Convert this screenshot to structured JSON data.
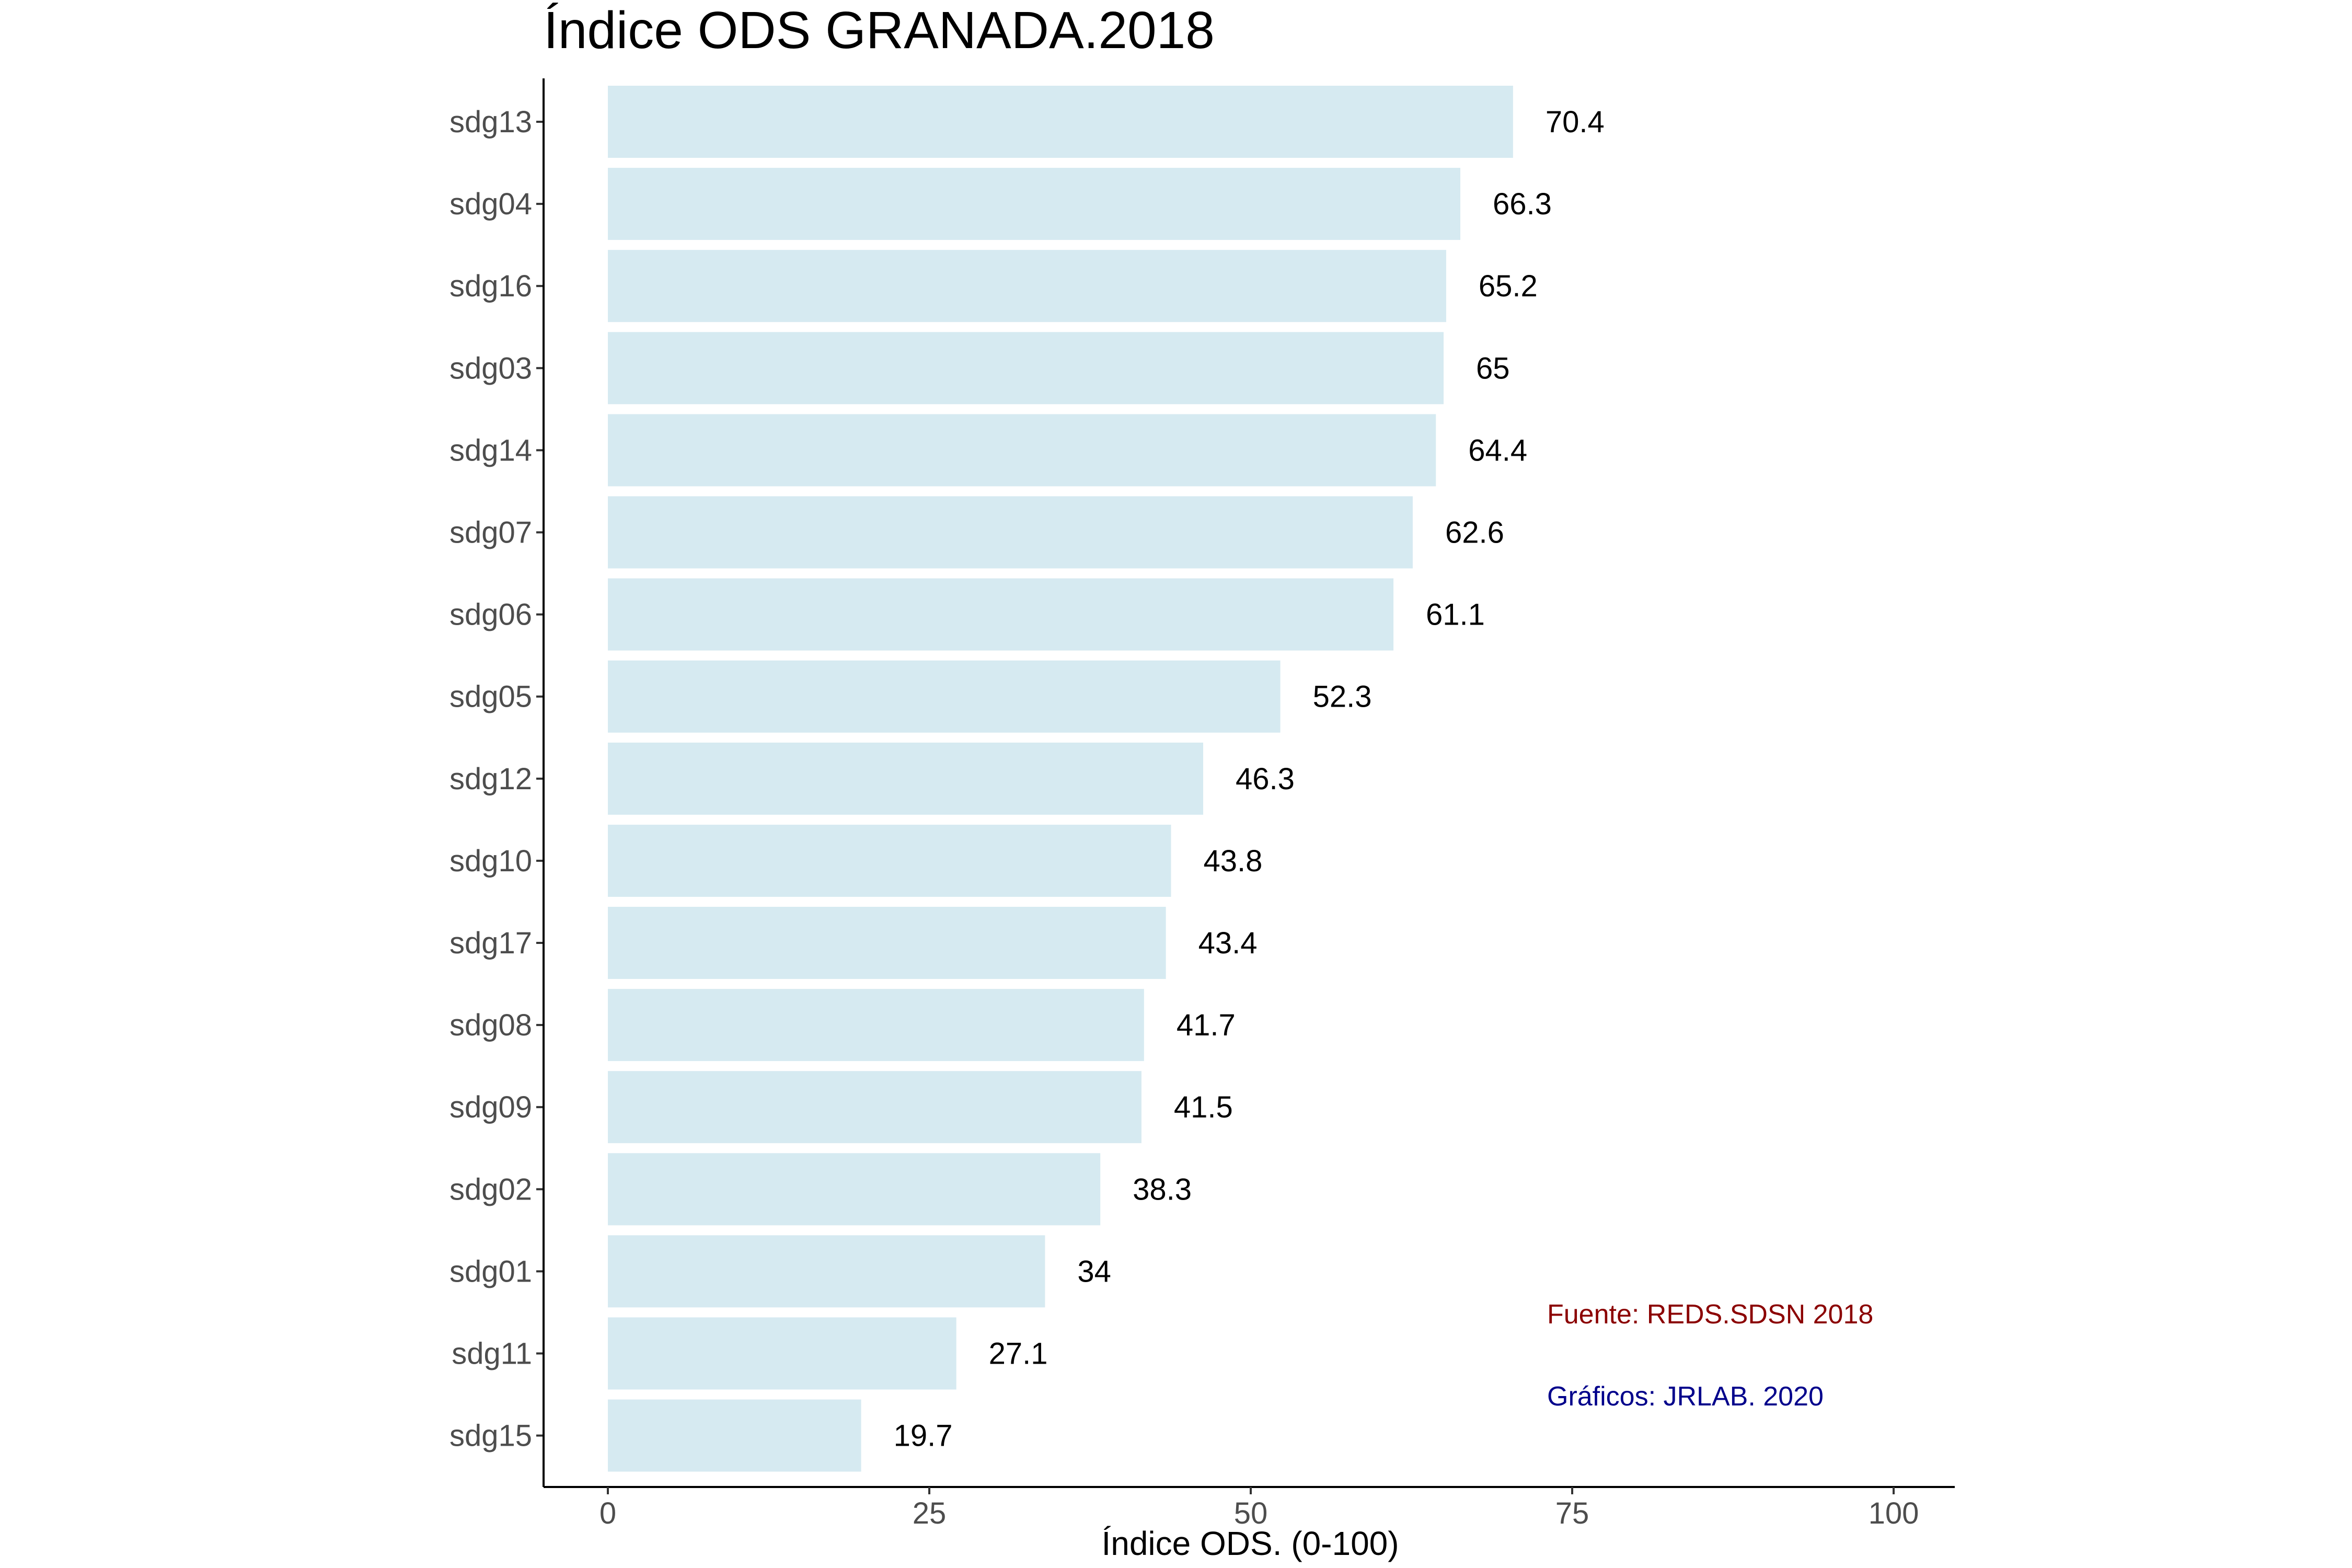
{
  "chart_data": {
    "type": "bar",
    "orientation": "horizontal",
    "title": "Índice ODS GRANADA.2018",
    "xlabel": "Índice ODS. (0-100)",
    "ylabel": "",
    "xlim": [
      0,
      100
    ],
    "xticks": [
      0,
      25,
      50,
      75,
      100
    ],
    "grid": false,
    "bar_color": "#d6eaf1",
    "categories": [
      "sdg13",
      "sdg04",
      "sdg16",
      "sdg03",
      "sdg14",
      "sdg07",
      "sdg06",
      "sdg05",
      "sdg12",
      "sdg10",
      "sdg17",
      "sdg08",
      "sdg09",
      "sdg02",
      "sdg01",
      "sdg11",
      "sdg15"
    ],
    "values": [
      70.4,
      66.3,
      65.2,
      65,
      64.4,
      62.6,
      61.1,
      52.3,
      46.3,
      43.8,
      43.4,
      41.7,
      41.5,
      38.3,
      34,
      27.1,
      19.7
    ],
    "annotations": [
      {
        "text": "Fuente: REDS.SDSN 2018",
        "color": "#8b0000"
      },
      {
        "text": "Gráficos: JRLAB. 2020",
        "color": "#00008b"
      }
    ]
  }
}
